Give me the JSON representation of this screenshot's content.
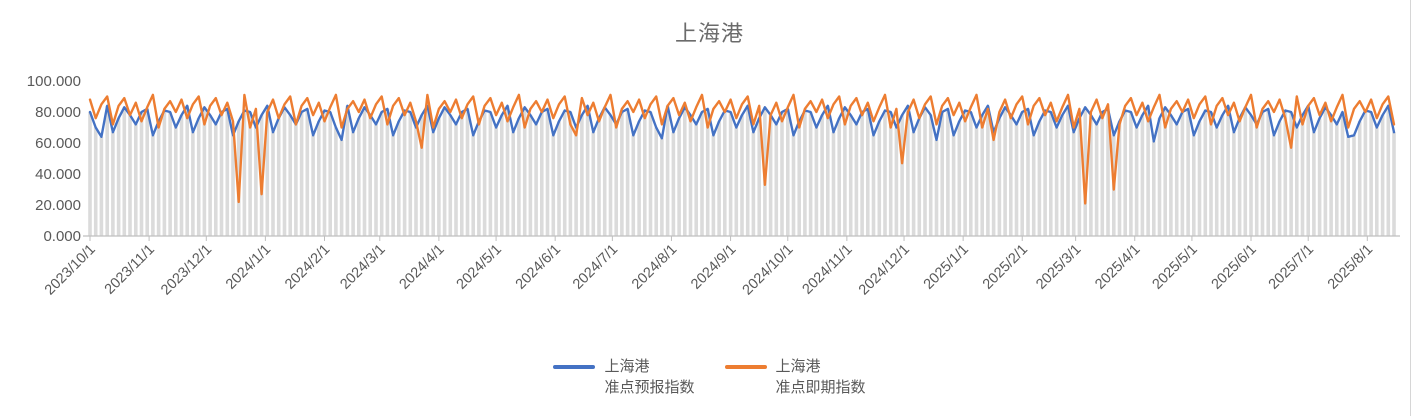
{
  "colors": {
    "forecast_line": "#4472C4",
    "spot_line": "#ED7D31",
    "drop_line": "#DBDBDB",
    "axis": "#BFBFBF",
    "label_text": "#595959",
    "title_text": "#6B6B6B"
  },
  "chart_data": {
    "type": "line",
    "title": "上海港",
    "xlabel": "",
    "ylabel": "",
    "ylim": [
      0,
      100
    ],
    "grid": false,
    "legend_position": "bottom",
    "drop_lines": true,
    "start_date": "2023/10/1",
    "sample_interval_days": 3,
    "total_days": 684,
    "y_ticks": [
      {
        "label": "0.000",
        "value": 0
      },
      {
        "label": "20.000",
        "value": 20
      },
      {
        "label": "40.000",
        "value": 40
      },
      {
        "label": "60.000",
        "value": 60
      },
      {
        "label": "80.000",
        "value": 80
      },
      {
        "label": "100.000",
        "value": 100
      }
    ],
    "x_ticks": [
      {
        "label": "2023/10/1",
        "day": 0
      },
      {
        "label": "2023/11/1",
        "day": 31
      },
      {
        "label": "2023/12/1",
        "day": 61
      },
      {
        "label": "2024/1/1",
        "day": 92
      },
      {
        "label": "2024/2/1",
        "day": 123
      },
      {
        "label": "2024/3/1",
        "day": 152
      },
      {
        "label": "2024/4/1",
        "day": 183
      },
      {
        "label": "2024/5/1",
        "day": 213
      },
      {
        "label": "2024/6/1",
        "day": 244
      },
      {
        "label": "2024/7/1",
        "day": 274
      },
      {
        "label": "2024/8/1",
        "day": 305
      },
      {
        "label": "2024/9/1",
        "day": 336
      },
      {
        "label": "2024/10/1",
        "day": 366
      },
      {
        "label": "2024/11/1",
        "day": 397
      },
      {
        "label": "2024/12/1",
        "day": 427
      },
      {
        "label": "2025/1/1",
        "day": 458
      },
      {
        "label": "2025/2/1",
        "day": 489
      },
      {
        "label": "2025/3/1",
        "day": 517
      },
      {
        "label": "2025/4/1",
        "day": 548
      },
      {
        "label": "2025/5/1",
        "day": 578
      },
      {
        "label": "2025/6/1",
        "day": 609
      },
      {
        "label": "2025/7/1",
        "day": 639
      },
      {
        "label": "2025/8/1",
        "day": 670
      }
    ],
    "series": [
      {
        "name_line1": "上海港",
        "name_line2": "准点预报指数",
        "color": "#4472C4",
        "values": [
          80,
          70,
          64,
          84,
          67,
          76,
          83,
          78,
          72,
          80,
          82,
          65,
          74,
          81,
          80,
          70,
          78,
          84,
          67,
          76,
          83,
          78,
          72,
          80,
          82,
          65,
          74,
          81,
          80,
          70,
          78,
          84,
          67,
          76,
          83,
          78,
          72,
          80,
          82,
          65,
          74,
          81,
          80,
          70,
          62,
          84,
          67,
          76,
          83,
          78,
          72,
          80,
          82,
          65,
          74,
          81,
          80,
          70,
          78,
          84,
          67,
          76,
          83,
          78,
          72,
          80,
          82,
          65,
          74,
          81,
          80,
          70,
          78,
          84,
          67,
          76,
          83,
          78,
          72,
          80,
          82,
          65,
          74,
          81,
          80,
          70,
          78,
          84,
          67,
          76,
          83,
          78,
          72,
          80,
          82,
          65,
          74,
          81,
          80,
          70,
          63,
          84,
          67,
          76,
          83,
          78,
          72,
          80,
          82,
          65,
          74,
          81,
          80,
          70,
          78,
          84,
          67,
          76,
          83,
          78,
          72,
          80,
          82,
          65,
          74,
          81,
          80,
          70,
          78,
          84,
          67,
          76,
          83,
          78,
          72,
          80,
          82,
          65,
          74,
          81,
          80,
          70,
          78,
          84,
          67,
          76,
          83,
          78,
          62,
          80,
          82,
          65,
          74,
          81,
          80,
          70,
          78,
          84,
          67,
          76,
          83,
          78,
          72,
          80,
          82,
          65,
          74,
          81,
          80,
          70,
          78,
          84,
          67,
          76,
          83,
          78,
          72,
          80,
          82,
          65,
          74,
          81,
          80,
          70,
          78,
          84,
          61,
          76,
          83,
          78,
          72,
          80,
          82,
          65,
          74,
          81,
          80,
          70,
          78,
          84,
          67,
          76,
          83,
          78,
          72,
          80,
          82,
          65,
          74,
          81,
          80,
          70,
          78,
          84,
          67,
          76,
          83,
          78,
          72,
          80,
          64,
          65,
          74,
          81,
          80,
          70,
          78,
          84,
          67
        ]
      },
      {
        "name_line1": "上海港",
        "name_line2": "准点即期指数",
        "color": "#ED7D31",
        "values": [
          88,
          76,
          85,
          90,
          72,
          84,
          89,
          78,
          86,
          74,
          83,
          91,
          70,
          82,
          87,
          80,
          88,
          76,
          85,
          90,
          72,
          84,
          89,
          78,
          86,
          74,
          22,
          91,
          70,
          82,
          27,
          80,
          88,
          76,
          85,
          90,
          72,
          84,
          89,
          78,
          86,
          74,
          83,
          91,
          70,
          82,
          87,
          80,
          88,
          76,
          85,
          90,
          72,
          84,
          89,
          78,
          86,
          74,
          57,
          91,
          70,
          82,
          87,
          80,
          88,
          76,
          85,
          90,
          72,
          84,
          89,
          78,
          86,
          74,
          83,
          91,
          70,
          82,
          87,
          80,
          88,
          76,
          85,
          90,
          72,
          65,
          89,
          78,
          86,
          74,
          83,
          91,
          70,
          82,
          87,
          80,
          88,
          76,
          85,
          90,
          72,
          84,
          89,
          78,
          86,
          74,
          83,
          91,
          70,
          82,
          87,
          80,
          88,
          76,
          85,
          90,
          72,
          84,
          33,
          78,
          86,
          74,
          83,
          91,
          70,
          82,
          87,
          80,
          88,
          76,
          85,
          90,
          72,
          84,
          89,
          78,
          86,
          74,
          83,
          91,
          70,
          82,
          47,
          80,
          88,
          76,
          85,
          90,
          72,
          84,
          89,
          78,
          86,
          74,
          83,
          91,
          70,
          82,
          62,
          80,
          88,
          76,
          85,
          90,
          72,
          84,
          89,
          78,
          86,
          74,
          83,
          91,
          70,
          82,
          21,
          80,
          88,
          76,
          85,
          30,
          72,
          84,
          89,
          78,
          86,
          74,
          83,
          91,
          70,
          82,
          87,
          80,
          88,
          76,
          85,
          90,
          72,
          84,
          89,
          78,
          86,
          74,
          83,
          91,
          70,
          82,
          87,
          80,
          88,
          76,
          57,
          90,
          72,
          84,
          89,
          78,
          86,
          74,
          83,
          91,
          70,
          82,
          87,
          80,
          88,
          76,
          85,
          90,
          72
        ]
      }
    ]
  },
  "legend": {
    "items": [
      {
        "line1": "上海港",
        "line2": "准点预报指数"
      },
      {
        "line1": "上海港",
        "line2": "准点即期指数"
      }
    ]
  }
}
